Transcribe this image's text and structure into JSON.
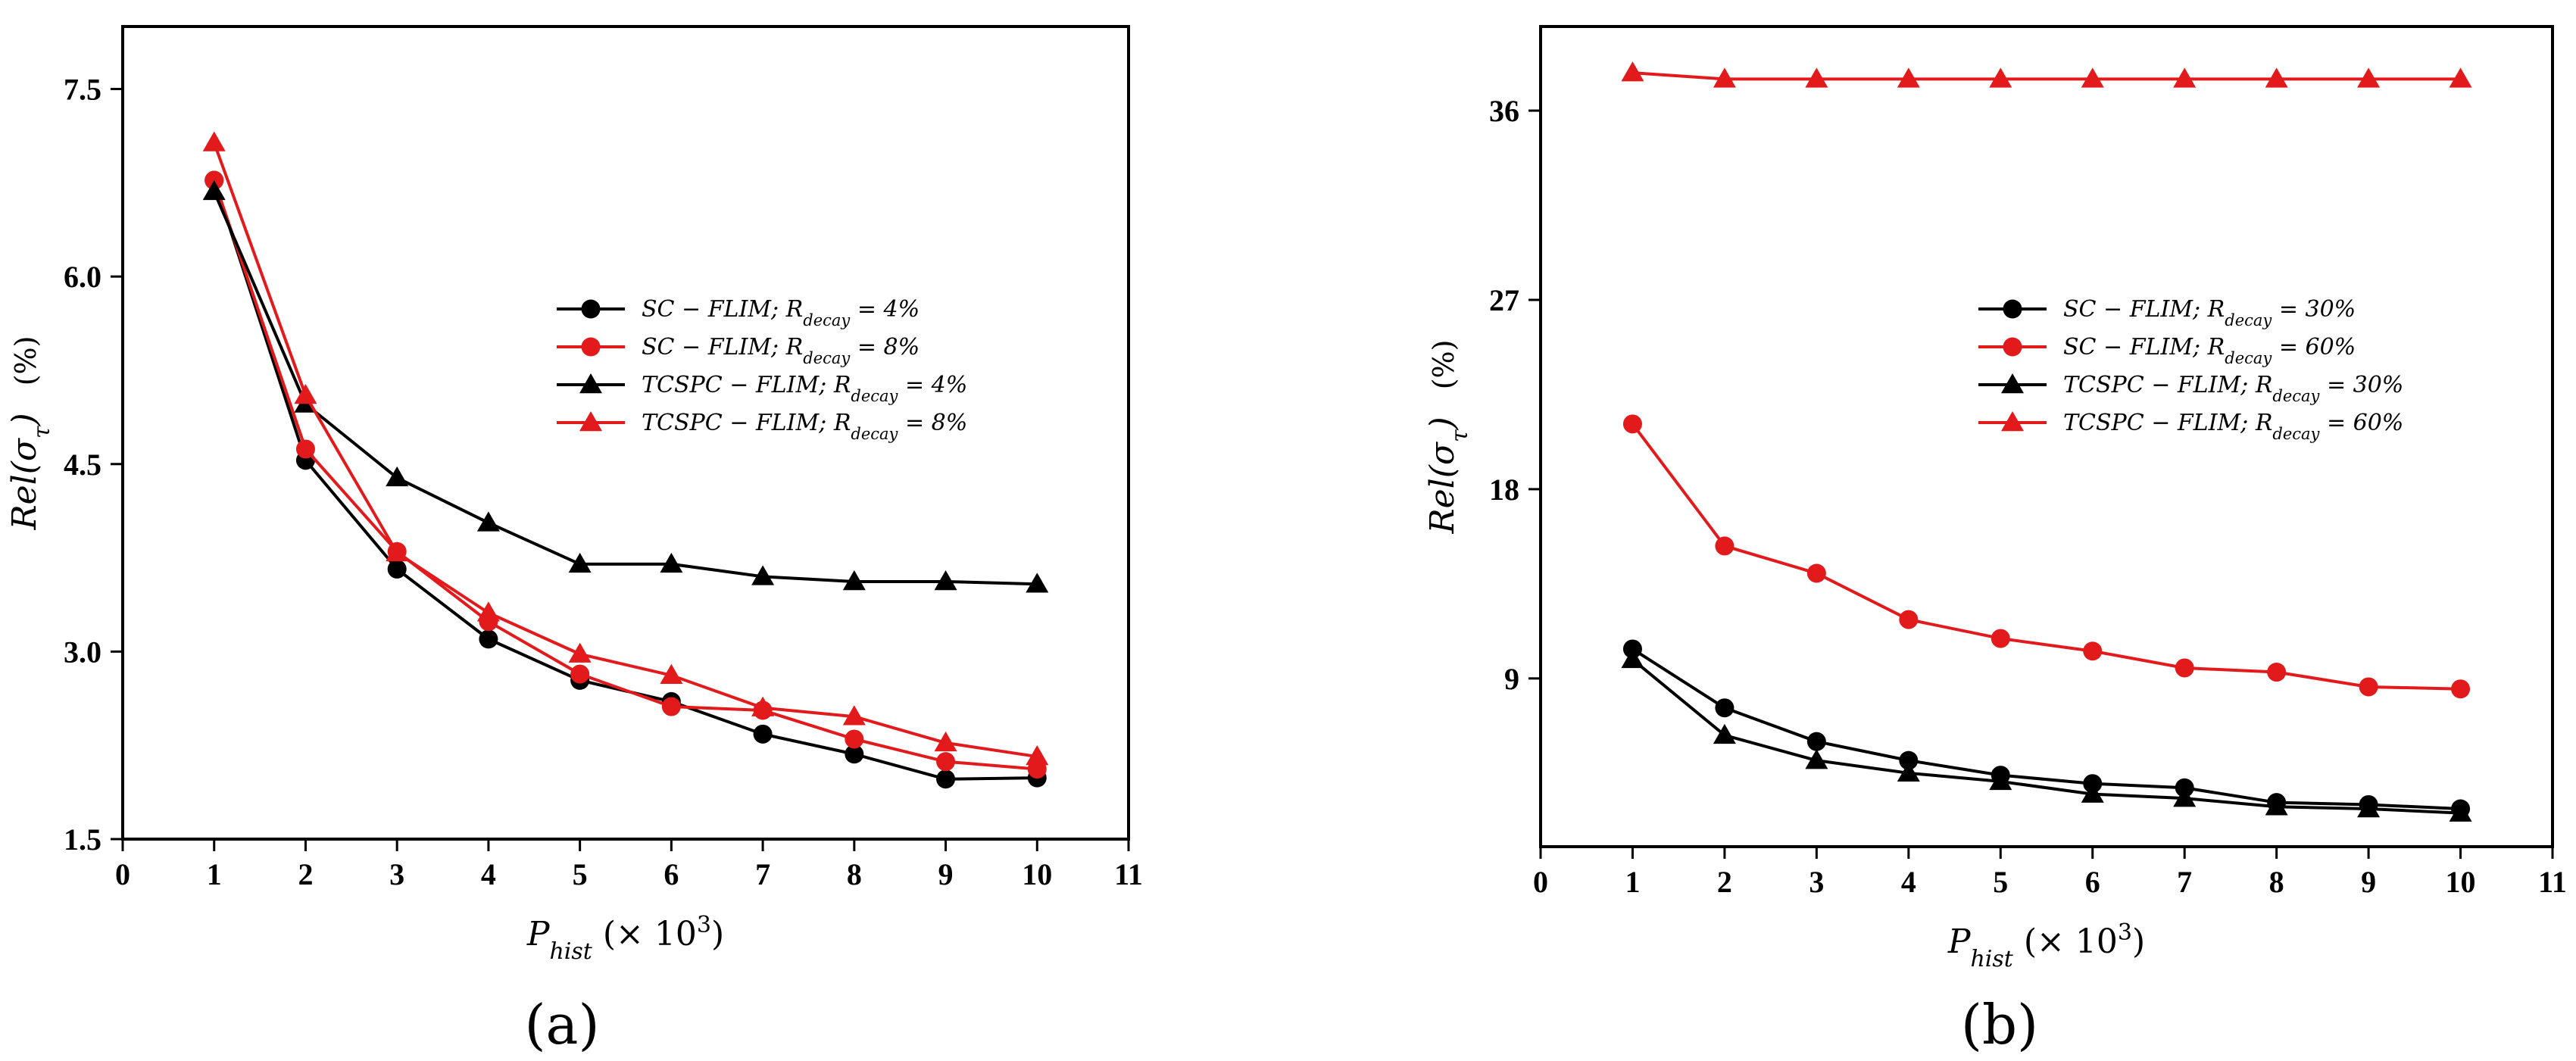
{
  "chart_data": [
    {
      "type": "line",
      "panel_label": "(a)",
      "xlabel": "P_hist (× 10^3)",
      "xlabel_parts": {
        "main": "P",
        "sub": "hist",
        "suffix": " (× 10",
        "sup": "3",
        "close": ")"
      },
      "ylabel": "Rel(σ_τ) (%)",
      "ylabel_parts": {
        "main": "Rel(σ",
        "sub": "τ",
        "close": ")",
        "unit": "(%)"
      },
      "xlim": [
        0,
        11
      ],
      "ylim": [
        1.5,
        8.0
      ],
      "xticks": [
        0,
        1,
        2,
        3,
        4,
        5,
        6,
        7,
        8,
        9,
        10,
        11
      ],
      "xtick_labels": [
        "0",
        "1",
        "2",
        "3",
        "4",
        "5",
        "6",
        "7",
        "8",
        "9",
        "10",
        "11"
      ],
      "yticks": [
        1.5,
        3.0,
        4.5,
        6.0,
        7.5
      ],
      "ytick_labels": [
        "1.5",
        "3.0",
        "4.5",
        "6.0",
        "7.5"
      ],
      "legend_position": "center-right",
      "x": [
        1,
        2,
        3,
        4,
        5,
        6,
        7,
        8,
        9,
        10
      ],
      "series": [
        {
          "name": "SC − FLIM; R_decay = 4%",
          "label_main": "SC − FLIM; R",
          "label_sub": "decay",
          "label_tail": " = 4%",
          "color": "#000000",
          "marker": "circle",
          "values": [
            6.77,
            4.53,
            3.66,
            3.1,
            2.77,
            2.6,
            2.34,
            2.18,
            1.98,
            1.99
          ]
        },
        {
          "name": "SC − FLIM; R_decay = 8%",
          "label_main": "SC − FLIM; R",
          "label_sub": "decay",
          "label_tail": " = 8%",
          "color": "#e31a1c",
          "marker": "circle",
          "values": [
            6.77,
            4.62,
            3.8,
            3.24,
            2.82,
            2.56,
            2.53,
            2.3,
            2.12,
            2.06
          ]
        },
        {
          "name": "TCSPC − FLIM; R_decay = 4%",
          "label_main": "TCSPC − FLIM; R",
          "label_sub": "decay",
          "label_tail": " = 4%",
          "color": "#000000",
          "marker": "triangle",
          "values": [
            6.68,
            4.98,
            4.39,
            4.03,
            3.7,
            3.7,
            3.6,
            3.56,
            3.56,
            3.54
          ]
        },
        {
          "name": "TCSPC − FLIM; R_decay = 8%",
          "label_main": "TCSPC − FLIM; R",
          "label_sub": "decay",
          "label_tail": " = 8%",
          "color": "#e31a1c",
          "marker": "triangle",
          "values": [
            7.07,
            5.05,
            3.79,
            3.31,
            2.98,
            2.81,
            2.55,
            2.48,
            2.27,
            2.16
          ]
        }
      ]
    },
    {
      "type": "line",
      "panel_label": "(b)",
      "xlabel": "P_hist (× 10^3)",
      "xlabel_parts": {
        "main": "P",
        "sub": "hist",
        "suffix": " (× 10",
        "sup": "3",
        "close": ")"
      },
      "ylabel": "Rel(σ_τ) (%)",
      "ylabel_parts": {
        "main": "Rel(σ",
        "sub": "τ",
        "close": ")",
        "unit": "(%)"
      },
      "xlim": [
        0,
        11
      ],
      "ylim": [
        1.0,
        40.0
      ],
      "xticks": [
        0,
        1,
        2,
        3,
        4,
        5,
        6,
        7,
        8,
        9,
        10,
        11
      ],
      "xtick_labels": [
        "0",
        "1",
        "2",
        "3",
        "4",
        "5",
        "6",
        "7",
        "8",
        "9",
        "10",
        "11"
      ],
      "yticks": [
        9,
        18,
        27,
        36
      ],
      "ytick_labels": [
        "9",
        "18",
        "27",
        "36"
      ],
      "legend_position": "center-right",
      "x": [
        1,
        2,
        3,
        4,
        5,
        6,
        7,
        8,
        9,
        10
      ],
      "series": [
        {
          "name": "SC − FLIM; R_decay = 30%",
          "label_main": "SC − FLIM; R",
          "label_sub": "decay",
          "label_tail": " = 30%",
          "color": "#000000",
          "marker": "circle",
          "values": [
            10.4,
            7.6,
            6.0,
            5.1,
            4.4,
            4.0,
            3.8,
            3.1,
            3.0,
            2.8
          ]
        },
        {
          "name": "SC − FLIM; R_decay = 60%",
          "label_main": "SC − FLIM; R",
          "label_sub": "decay",
          "label_tail": " = 60%",
          "color": "#e31a1c",
          "marker": "circle",
          "values": [
            21.1,
            15.3,
            14.0,
            11.8,
            10.9,
            10.3,
            9.5,
            9.3,
            8.6,
            8.5
          ]
        },
        {
          "name": "TCSPC − FLIM; R_decay = 30%",
          "label_main": "TCSPC − FLIM; R",
          "label_sub": "decay",
          "label_tail": " = 30%",
          "color": "#000000",
          "marker": "triangle",
          "values": [
            9.9,
            6.3,
            5.1,
            4.5,
            4.1,
            3.5,
            3.3,
            2.9,
            2.8,
            2.6
          ]
        },
        {
          "name": "TCSPC − FLIM; R_decay = 60%",
          "label_main": "TCSPC − FLIM; R",
          "label_sub": "decay",
          "label_tail": " = 60%",
          "color": "#e31a1c",
          "marker": "triangle",
          "values": [
            37.8,
            37.5,
            37.5,
            37.5,
            37.5,
            37.5,
            37.5,
            37.5,
            37.5,
            37.5
          ]
        }
      ]
    }
  ]
}
